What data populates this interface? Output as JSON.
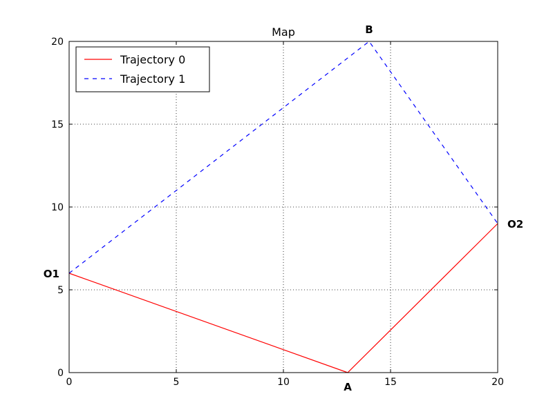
{
  "chart_data": {
    "type": "line",
    "title": "Map",
    "xlabel": "",
    "ylabel": "",
    "xlim": [
      0,
      20
    ],
    "ylim": [
      0,
      20
    ],
    "xticks": [
      0,
      5,
      10,
      15,
      20
    ],
    "yticks": [
      0,
      5,
      10,
      15,
      20
    ],
    "grid": true,
    "legend_position": "upper-left",
    "series": [
      {
        "name": "Trajectory 0",
        "color": "#ff0000",
        "style": "solid",
        "x": [
          0,
          13,
          20
        ],
        "y": [
          6,
          0,
          9
        ]
      },
      {
        "name": "Trajectory 1",
        "color": "#0000ff",
        "style": "dashed",
        "x": [
          0,
          14,
          20
        ],
        "y": [
          6,
          20,
          9
        ]
      }
    ],
    "annotations": [
      {
        "text": "O1",
        "x": 0,
        "y": 6,
        "anchor": "left"
      },
      {
        "text": "A",
        "x": 13,
        "y": 0,
        "anchor": "below"
      },
      {
        "text": "B",
        "x": 14,
        "y": 20,
        "anchor": "above"
      },
      {
        "text": "O2",
        "x": 20,
        "y": 9,
        "anchor": "right"
      }
    ]
  }
}
